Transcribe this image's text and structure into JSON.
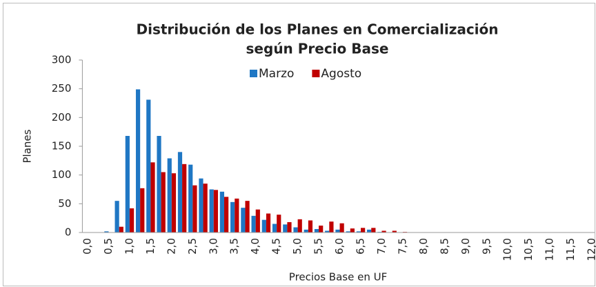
{
  "chart_data": {
    "type": "bar",
    "title": [
      "Distribución de los Planes en Comercialización",
      "según Precio Base"
    ],
    "x_label": "Precios Base en UF",
    "y_label": "Planes",
    "categories": [
      "0,0",
      null,
      "0,5",
      null,
      "1,0",
      null,
      "1,5",
      null,
      "2,0",
      null,
      "2,5",
      null,
      "3,0",
      null,
      "3,5",
      null,
      "4,0",
      null,
      "4,5",
      null,
      "5,0",
      null,
      "5,5",
      null,
      "6,0",
      null,
      "6,5",
      null,
      "7,0",
      null,
      "7,5",
      null,
      "8,0",
      null,
      "8,5",
      null,
      "9,0",
      null,
      "9,5",
      null,
      "10,0",
      null,
      "10,5",
      null,
      "11,0",
      null,
      "11,5",
      null,
      "12,0"
    ],
    "series": [
      {
        "name": "Marzo",
        "color": "#1f77c4",
        "values": [
          0,
          0,
          2,
          55,
          168,
          249,
          231,
          168,
          129,
          140,
          118,
          94,
          75,
          71,
          53,
          43,
          29,
          22,
          15,
          14,
          9,
          5,
          6,
          3,
          5,
          2,
          2,
          5,
          1,
          0,
          0,
          0,
          0,
          0,
          0,
          0,
          0,
          0,
          0,
          0,
          0,
          0,
          0,
          0,
          0,
          0,
          0,
          0,
          0
        ]
      },
      {
        "name": "Agosto",
        "color": "#c00000",
        "values": [
          0,
          0,
          0,
          10,
          42,
          77,
          122,
          105,
          103,
          119,
          82,
          85,
          74,
          62,
          59,
          55,
          40,
          33,
          31,
          18,
          23,
          21,
          12,
          19,
          16,
          7,
          8,
          8,
          3,
          3,
          1,
          0,
          0,
          0,
          0,
          0,
          0,
          0,
          0,
          0,
          0,
          0,
          0,
          0,
          0,
          0,
          0,
          0,
          0
        ]
      }
    ],
    "ylim": [
      0,
      300
    ],
    "yticks": [
      0,
      50,
      100,
      150,
      200,
      250,
      300
    ],
    "grid": false,
    "legend": "top"
  }
}
